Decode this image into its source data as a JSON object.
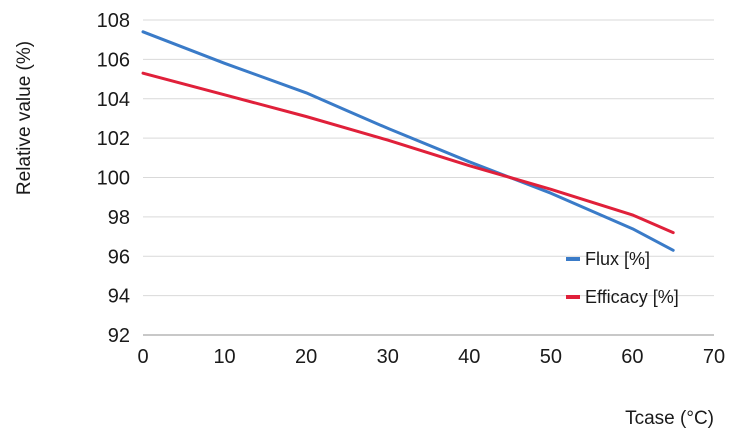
{
  "chart_data": {
    "type": "line",
    "xlabel": "Tcase (°C)",
    "ylabel": "Relative value (%)",
    "xlim": [
      0,
      70
    ],
    "ylim": [
      92,
      108
    ],
    "x_ticks": [
      0,
      10,
      20,
      30,
      40,
      50,
      60,
      70
    ],
    "y_ticks": [
      92,
      94,
      96,
      98,
      100,
      102,
      104,
      106,
      108
    ],
    "grid": "horizontal",
    "legend_position": "bottom-right",
    "series": [
      {
        "name": "Flux [%]",
        "color": "#3a7bc8",
        "x": [
          0,
          10,
          20,
          25,
          30,
          40,
          45,
          50,
          60,
          65
        ],
        "y": [
          107.4,
          105.8,
          104.3,
          103.4,
          102.5,
          100.8,
          100.0,
          99.2,
          97.4,
          96.3
        ]
      },
      {
        "name": "Efficacy [%]",
        "color": "#e0203a",
        "x": [
          0,
          10,
          20,
          30,
          40,
          45,
          50,
          60,
          65
        ],
        "y": [
          105.3,
          104.2,
          103.1,
          101.9,
          100.6,
          100.0,
          99.4,
          98.1,
          97.2
        ]
      }
    ]
  }
}
